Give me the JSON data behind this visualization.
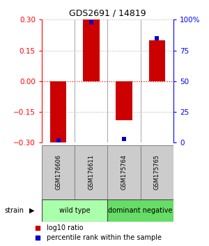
{
  "title": "GDS2691 / 14819",
  "samples": [
    "GSM176606",
    "GSM176611",
    "GSM175764",
    "GSM175765"
  ],
  "log10_ratio": [
    -0.3,
    0.3,
    -0.19,
    0.2
  ],
  "percentile_rank": [
    2,
    98,
    3,
    85
  ],
  "group_configs": [
    {
      "indices": [
        0,
        1
      ],
      "label": "wild type",
      "color": "#aaffaa"
    },
    {
      "indices": [
        2,
        3
      ],
      "label": "dominant negative",
      "color": "#66dd66"
    }
  ],
  "ylim": [
    -0.3,
    0.3
  ],
  "yticks_left": [
    -0.3,
    -0.15,
    0,
    0.15,
    0.3
  ],
  "yticks_right": [
    0,
    25,
    50,
    75,
    100
  ],
  "bar_color": "#cc0000",
  "dot_color": "#0000cc",
  "legend_items": [
    {
      "label": "log10 ratio",
      "color": "#cc0000"
    },
    {
      "label": "percentile rank within the sample",
      "color": "#0000cc"
    }
  ]
}
